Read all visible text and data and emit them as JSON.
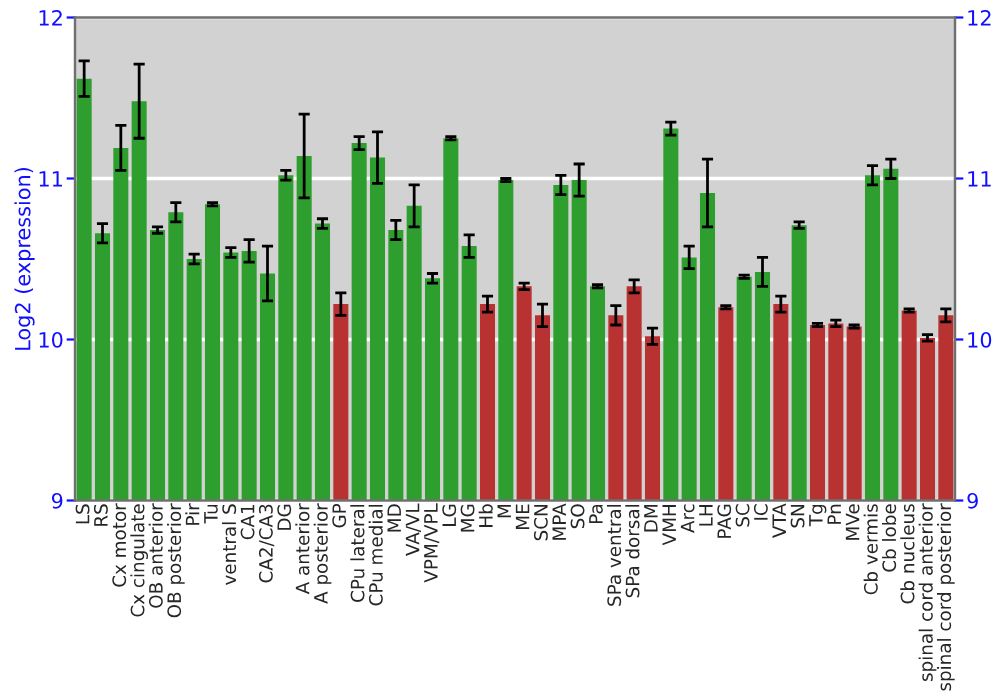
{
  "chart_data": {
    "type": "bar",
    "ylabel": "Log2 (expression)",
    "categories": [
      "LS",
      "RS",
      "Cx motor",
      "Cx cingulate",
      "OB anterior",
      "OB posterior",
      "Pir",
      "Tu",
      "ventral S",
      "CA1",
      "CA2/CA3",
      "DG",
      "A anterior",
      "A posterior",
      "GP",
      "CPu lateral",
      "CPu medial",
      "MD",
      "VA/VL",
      "VPM/VPL",
      "LG",
      "MG",
      "Hb",
      "M",
      "ME",
      "SCN",
      "MPA",
      "SO",
      "Pa",
      "SPa ventral",
      "SPa dorsal",
      "DM",
      "VMH",
      "Arc",
      "LH",
      "PAG",
      "SC",
      "IC",
      "VTA",
      "SN",
      "Tg",
      "Pn",
      "MVe",
      "Cb vermis",
      "Cb lobe",
      "Cb nucleus",
      "spinal cord anterior",
      "spinal cord posterior"
    ],
    "values": [
      11.62,
      10.66,
      11.19,
      11.48,
      10.68,
      10.79,
      10.5,
      10.84,
      10.54,
      10.55,
      10.41,
      11.02,
      11.14,
      10.72,
      10.22,
      11.22,
      11.13,
      10.68,
      10.83,
      10.38,
      11.25,
      10.58,
      10.22,
      10.99,
      10.33,
      10.15,
      10.96,
      10.99,
      10.33,
      10.15,
      10.33,
      10.02,
      11.31,
      10.51,
      10.91,
      10.2,
      10.39,
      10.42,
      10.22,
      10.71,
      10.09,
      10.1,
      10.08,
      11.02,
      11.06,
      10.18,
      10.01,
      10.15
    ],
    "errors": [
      0.11,
      0.06,
      0.14,
      0.23,
      0.02,
      0.06,
      0.03,
      0.01,
      0.03,
      0.07,
      0.17,
      0.03,
      0.26,
      0.03,
      0.07,
      0.04,
      0.16,
      0.06,
      0.13,
      0.03,
      0.01,
      0.07,
      0.05,
      0.01,
      0.02,
      0.07,
      0.06,
      0.1,
      0.01,
      0.06,
      0.04,
      0.05,
      0.04,
      0.07,
      0.21,
      0.01,
      0.01,
      0.09,
      0.05,
      0.02,
      0.01,
      0.02,
      0.01,
      0.06,
      0.06,
      0.01,
      0.02,
      0.04
    ],
    "colors": [
      "#2e9e2e",
      "#2e9e2e",
      "#2e9e2e",
      "#2e9e2e",
      "#2e9e2e",
      "#2e9e2e",
      "#2e9e2e",
      "#2e9e2e",
      "#2e9e2e",
      "#2e9e2e",
      "#2e9e2e",
      "#2e9e2e",
      "#2e9e2e",
      "#2e9e2e",
      "#b83232",
      "#2e9e2e",
      "#2e9e2e",
      "#2e9e2e",
      "#2e9e2e",
      "#2e9e2e",
      "#2e9e2e",
      "#2e9e2e",
      "#b83232",
      "#2e9e2e",
      "#b83232",
      "#b83232",
      "#2e9e2e",
      "#2e9e2e",
      "#2e9e2e",
      "#b83232",
      "#b83232",
      "#b83232",
      "#2e9e2e",
      "#2e9e2e",
      "#2e9e2e",
      "#b83232",
      "#2e9e2e",
      "#2e9e2e",
      "#b83232",
      "#2e9e2e",
      "#b83232",
      "#b83232",
      "#b83232",
      "#2e9e2e",
      "#2e9e2e",
      "#b83232",
      "#b83232",
      "#b83232"
    ],
    "ylim": [
      9,
      12
    ],
    "yticks": [
      9,
      10,
      11,
      12
    ],
    "y2lim": [
      9,
      12
    ],
    "y2ticks": [
      9,
      10,
      11,
      12
    ],
    "grid": "y",
    "legend": false
  }
}
